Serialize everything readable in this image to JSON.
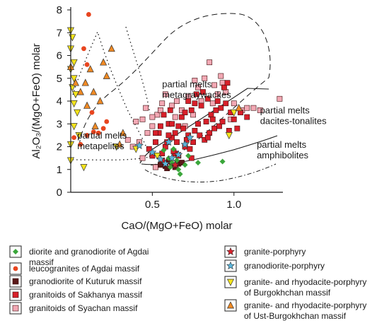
{
  "chart_data": {
    "type": "scatter",
    "title": "",
    "xlabel": "CaO/(MgO+FeO) molar",
    "ylabel": "Al₂O₃/(MgO+FeO) molar",
    "xlim": [
      0.0,
      1.3
    ],
    "ylim": [
      0,
      8
    ],
    "x_ticks": [
      "0.5",
      "1.0"
    ],
    "y_ticks": [
      "0",
      "1",
      "2",
      "3",
      "4",
      "5",
      "6",
      "7",
      "8"
    ],
    "grid": false,
    "legend_placement": "bottom",
    "region_labels": [
      {
        "text": "partial melts\nmetapelites",
        "x": 0.04,
        "y": 2.35
      },
      {
        "text": "partial melts\nmetagraywackes",
        "x": 0.56,
        "y": 4.6
      },
      {
        "text": "partial melts\ndacites-tonalites",
        "x": 1.16,
        "y": 3.45
      },
      {
        "text": "partial melts\namphibolites",
        "x": 1.14,
        "y": 1.95
      }
    ],
    "series": [
      {
        "name": "diorite and granodiorite of Agdai massif",
        "marker": "diamond",
        "color": "#3aa63a",
        "points": [
          [
            0.57,
            1.85
          ],
          [
            0.6,
            1.5
          ],
          [
            0.62,
            1.3
          ],
          [
            0.63,
            1.9
          ],
          [
            0.65,
            1.4
          ],
          [
            0.66,
            1.0
          ],
          [
            0.67,
            0.8
          ],
          [
            0.7,
            1.2
          ],
          [
            0.72,
            1.6
          ],
          [
            0.78,
            1.3
          ],
          [
            0.93,
            1.35
          ],
          [
            0.61,
            1.1
          ]
        ]
      },
      {
        "name": "leucogranites of Agdai massif",
        "marker": "circle",
        "color": "#e8451f",
        "points": [
          [
            0.11,
            7.8
          ],
          [
            0.08,
            6.3
          ],
          [
            0.1,
            5.6
          ],
          [
            0.02,
            2.4
          ],
          [
            0.06,
            2.1
          ],
          [
            0.14,
            2.65
          ],
          [
            0.17,
            2.6
          ],
          [
            0.2,
            2.8
          ],
          [
            0.22,
            3.1
          ],
          [
            0.1,
            2.5
          ],
          [
            0.13,
            3.5
          ]
        ]
      },
      {
        "name": "granodiorite of Kuturuk massif",
        "marker": "square",
        "color": "#5a1818",
        "points": [
          [
            0.55,
            1.2
          ],
          [
            0.58,
            1.15
          ],
          [
            0.6,
            1.35
          ],
          [
            0.62,
            1.2
          ],
          [
            0.64,
            1.1
          ],
          [
            0.66,
            1.25
          ],
          [
            0.68,
            1.3
          ],
          [
            0.59,
            1.05
          ]
        ]
      },
      {
        "name": "granitoids of Sakhanya massif",
        "marker": "square",
        "color": "#d8202a",
        "points": [
          [
            0.5,
            1.6
          ],
          [
            0.52,
            2.2
          ],
          [
            0.54,
            2.6
          ],
          [
            0.56,
            1.4
          ],
          [
            0.58,
            2.0
          ],
          [
            0.6,
            3.0
          ],
          [
            0.62,
            2.4
          ],
          [
            0.64,
            1.7
          ],
          [
            0.66,
            2.9
          ],
          [
            0.68,
            3.3
          ],
          [
            0.7,
            2.0
          ],
          [
            0.72,
            2.5
          ],
          [
            0.74,
            3.6
          ],
          [
            0.76,
            2.7
          ],
          [
            0.78,
            3.0
          ],
          [
            0.8,
            3.8
          ],
          [
            0.82,
            2.3
          ],
          [
            0.84,
            4.1
          ],
          [
            0.86,
            3.4
          ],
          [
            0.88,
            2.8
          ],
          [
            0.9,
            4.0
          ],
          [
            0.92,
            3.7
          ],
          [
            0.94,
            4.6
          ],
          [
            0.96,
            4.8
          ],
          [
            0.98,
            3.5
          ],
          [
            1.0,
            3.2
          ],
          [
            1.04,
            3.5
          ],
          [
            1.08,
            3.3
          ],
          [
            0.55,
            2.9
          ],
          [
            0.57,
            3.4
          ],
          [
            0.61,
            3.6
          ],
          [
            0.63,
            1.8
          ],
          [
            0.65,
            2.2
          ],
          [
            0.7,
            3.5
          ],
          [
            0.73,
            1.9
          ],
          [
            0.75,
            2.2
          ],
          [
            0.79,
            2.5
          ],
          [
            0.83,
            3.1
          ],
          [
            0.87,
            3.2
          ],
          [
            0.91,
            2.9
          ],
          [
            0.95,
            3.9
          ],
          [
            0.97,
            2.7
          ],
          [
            0.52,
            2.6
          ],
          [
            0.6,
            2.5
          ],
          [
            0.69,
            2.8
          ],
          [
            0.77,
            4.3
          ],
          [
            0.81,
            4.4
          ],
          [
            0.85,
            2.6
          ],
          [
            0.93,
            3.1
          ],
          [
            1.02,
            2.8
          ],
          [
            0.48,
            1.9
          ],
          [
            0.59,
            2.2
          ],
          [
            0.71,
            2.3
          ],
          [
            0.66,
            1.6
          ],
          [
            0.74,
            1.5
          ],
          [
            0.56,
            1.7
          ],
          [
            0.89,
            3.6
          ],
          [
            0.62,
            3.0
          ],
          [
            0.76,
            3.9
          ],
          [
            0.84,
            2.4
          ],
          [
            0.72,
            4.0
          ],
          [
            0.64,
            2.6
          ]
        ]
      },
      {
        "name": "granitoids of Syachan massif",
        "marker": "square",
        "color": "#f2a8b4",
        "points": [
          [
            0.4,
            3.1
          ],
          [
            0.44,
            3.2
          ],
          [
            0.47,
            2.6
          ],
          [
            0.5,
            2.9
          ],
          [
            0.53,
            3.4
          ],
          [
            0.56,
            3.9
          ],
          [
            0.6,
            3.0
          ],
          [
            0.62,
            3.8
          ],
          [
            0.65,
            4.0
          ],
          [
            0.68,
            3.6
          ],
          [
            0.72,
            4.2
          ],
          [
            0.75,
            3.4
          ],
          [
            0.78,
            4.6
          ],
          [
            0.82,
            5.0
          ],
          [
            0.85,
            5.7
          ],
          [
            0.88,
            4.7
          ],
          [
            0.92,
            5.1
          ],
          [
            0.95,
            4.4
          ],
          [
            1.0,
            3.9
          ],
          [
            1.05,
            3.6
          ],
          [
            1.12,
            3.7
          ],
          [
            1.16,
            3.6
          ],
          [
            1.28,
            4.1
          ],
          [
            0.42,
            2.2
          ],
          [
            0.46,
            3.7
          ],
          [
            0.35,
            2.3
          ],
          [
            0.38,
            2.0
          ],
          [
            0.55,
            3.6
          ],
          [
            0.58,
            4.3
          ],
          [
            0.8,
            4.0
          ],
          [
            0.9,
            4.3
          ],
          [
            0.98,
            3.2
          ],
          [
            1.08,
            3.7
          ],
          [
            0.7,
            2.9
          ],
          [
            0.64,
            3.3
          ],
          [
            0.5,
            3.3
          ],
          [
            0.87,
            3.9
          ],
          [
            0.76,
            4.9
          ],
          [
            0.93,
            4.8
          ],
          [
            0.44,
            1.5
          ],
          [
            0.52,
            1.1
          ]
        ]
      },
      {
        "name": "granite-porphyry",
        "marker": "star",
        "color": "#d8202a",
        "points": [
          [
            0.64,
            1.2
          ]
        ]
      },
      {
        "name": "granodiorite-porphyry",
        "marker": "star",
        "color": "#5bb6dc",
        "points": [
          [
            0.42,
            2.05
          ],
          [
            0.5,
            1.75
          ],
          [
            0.55,
            1.45
          ],
          [
            0.58,
            1.25
          ],
          [
            0.62,
            1.5
          ],
          [
            0.66,
            1.65
          ],
          [
            0.7,
            2.1
          ],
          [
            0.73,
            2.4
          ],
          [
            0.6,
            2.2
          ]
        ]
      },
      {
        "name": "granite- and rhyodacite-porphyry of Burgokhchan massif",
        "marker": "tri-down",
        "color": "#f4e41c",
        "points": [
          [
            0.0,
            7.1
          ],
          [
            0.01,
            6.8
          ],
          [
            0.0,
            6.3
          ],
          [
            0.02,
            5.7
          ],
          [
            0.0,
            5.4
          ],
          [
            0.02,
            5.0
          ],
          [
            0.01,
            4.6
          ],
          [
            0.03,
            4.3
          ],
          [
            0.02,
            3.9
          ],
          [
            0.04,
            3.5
          ],
          [
            0.02,
            2.9
          ],
          [
            0.05,
            2.5
          ],
          [
            0.0,
            2.1
          ],
          [
            0.0,
            1.4
          ],
          [
            0.08,
            1.1
          ],
          [
            0.28,
            2.0
          ],
          [
            0.4,
            1.9
          ],
          [
            0.53,
            1.6
          ],
          [
            0.97,
            2.5
          ],
          [
            1.0,
            3.5
          ]
        ]
      },
      {
        "name": "granite- and rhyodacite-porphyry of Ust-Burgokhchan massif",
        "marker": "tri-up",
        "color": "#f08a24",
        "points": [
          [
            0.0,
            5.5
          ],
          [
            0.03,
            4.8
          ],
          [
            0.06,
            4.4
          ],
          [
            0.09,
            4.8
          ],
          [
            0.12,
            5.4
          ],
          [
            0.1,
            3.8
          ],
          [
            0.14,
            4.4
          ],
          [
            0.18,
            4.0
          ],
          [
            0.2,
            5.7
          ],
          [
            0.22,
            5.1
          ],
          [
            0.25,
            6.3
          ],
          [
            0.15,
            2.9
          ],
          [
            0.3,
            2.1
          ],
          [
            0.32,
            2.6
          ],
          [
            1.03,
            3.7
          ]
        ]
      }
    ]
  },
  "legend": {
    "items": [
      {
        "label": "diorite and granodiorite of Agdai\nmassif",
        "marker": "diamond",
        "color": "#3aa63a"
      },
      {
        "label": "leucogranites of Agdai massif",
        "marker": "circle",
        "color": "#e8451f"
      },
      {
        "label": "granodiorite of Kuturuk massif",
        "marker": "square",
        "color": "#5a1818"
      },
      {
        "label": "granitoids of Sakhanya massif",
        "marker": "square",
        "color": "#d8202a"
      },
      {
        "label": "granitoids of Syachan massif",
        "marker": "square",
        "color": "#f2a8b4"
      },
      {
        "label": "granite-porphyry",
        "marker": "star",
        "color": "#d8202a"
      },
      {
        "label": "granodiorite-porphyry",
        "marker": "star",
        "color": "#5bb6dc"
      },
      {
        "label": "granite- and rhyodacite-porphyry\nof Burgokhchan massif",
        "marker": "tri-down",
        "color": "#f4e41c"
      },
      {
        "label": "granite- and rhyodacite-porphyry\nof Ust-Burgokhchan massif",
        "marker": "tri-up",
        "color": "#f08a24"
      }
    ]
  }
}
